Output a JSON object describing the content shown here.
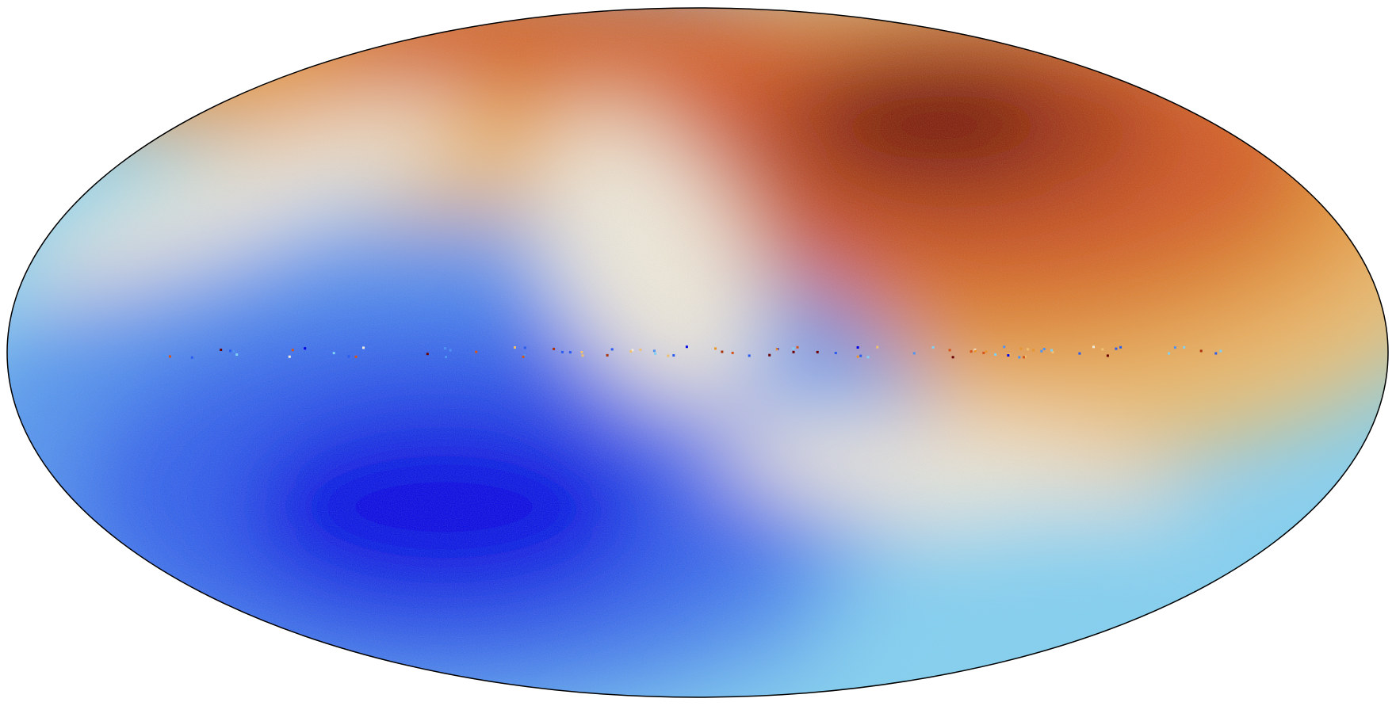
{
  "image": {
    "projection": "mollweide",
    "colormap": [
      "#0000e6",
      "#2a5cf0",
      "#4f93f2",
      "#7fd2f5",
      "#f2ecdc",
      "#efc070",
      "#e89530",
      "#d5541a",
      "#a8300a",
      "#6a0000"
    ],
    "outline_color": "#000000",
    "background": "#ffffff"
  }
}
